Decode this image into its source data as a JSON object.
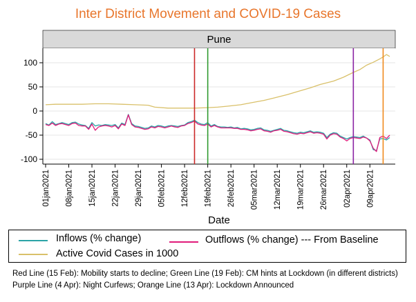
{
  "chart_data": {
    "type": "line",
    "title": "Inter District Movement and COVID-19 Cases",
    "panel_label": "Pune",
    "xlabel": "Date",
    "ylabel": "",
    "xlim": [
      "2021-01-01",
      "2021-04-15"
    ],
    "ylim": [
      -110,
      130
    ],
    "y_ticks": [
      100,
      50,
      0,
      -50,
      -100
    ],
    "x_ticks": [
      "01jan2021",
      "08jan2021",
      "15jan2021",
      "22jan2021",
      "29jan2021",
      "05feb2021",
      "12feb2021",
      "19feb2021",
      "26feb2021",
      "05mar2021",
      "12mar2021",
      "19mar2021",
      "26mar2021",
      "02apr2021",
      "09apr2021"
    ],
    "grid": true,
    "legend_position": "bottom",
    "series": [
      {
        "name": "Inflows (% change)",
        "color": "#2aa3a6",
        "points": [
          [
            "2021-01-01",
            -26
          ],
          [
            "2021-01-02",
            -29
          ],
          [
            "2021-01-03",
            -22
          ],
          [
            "2021-01-04",
            -28
          ],
          [
            "2021-01-05",
            -26
          ],
          [
            "2021-01-06",
            -24
          ],
          [
            "2021-01-07",
            -26
          ],
          [
            "2021-01-08",
            -28
          ],
          [
            "2021-01-09",
            -24
          ],
          [
            "2021-01-10",
            -23
          ],
          [
            "2021-01-11",
            -27
          ],
          [
            "2021-01-12",
            -29
          ],
          [
            "2021-01-13",
            -30
          ],
          [
            "2021-01-14",
            -36
          ],
          [
            "2021-01-15",
            -24
          ],
          [
            "2021-01-16",
            -31
          ],
          [
            "2021-01-17",
            -29
          ],
          [
            "2021-01-18",
            -30
          ],
          [
            "2021-01-19",
            -28
          ],
          [
            "2021-01-20",
            -29
          ],
          [
            "2021-01-21",
            -30
          ],
          [
            "2021-01-22",
            -28
          ],
          [
            "2021-01-23",
            -35
          ],
          [
            "2021-01-24",
            -25
          ],
          [
            "2021-01-25",
            -28
          ],
          [
            "2021-01-26",
            -7
          ],
          [
            "2021-01-27",
            -26
          ],
          [
            "2021-01-28",
            -31
          ],
          [
            "2021-01-29",
            -32
          ],
          [
            "2021-01-30",
            -34
          ],
          [
            "2021-01-31",
            -36
          ],
          [
            "2021-02-01",
            -35
          ],
          [
            "2021-02-02",
            -31
          ],
          [
            "2021-02-03",
            -33
          ],
          [
            "2021-02-04",
            -30
          ],
          [
            "2021-02-05",
            -31
          ],
          [
            "2021-02-06",
            -33
          ],
          [
            "2021-02-07",
            -31
          ],
          [
            "2021-02-08",
            -30
          ],
          [
            "2021-02-09",
            -31
          ],
          [
            "2021-02-10",
            -32
          ],
          [
            "2021-02-11",
            -30
          ],
          [
            "2021-02-12",
            -29
          ],
          [
            "2021-02-13",
            -24
          ],
          [
            "2021-02-14",
            -22
          ],
          [
            "2021-02-15",
            -19
          ],
          [
            "2021-02-16",
            -24
          ],
          [
            "2021-02-17",
            -27
          ],
          [
            "2021-02-18",
            -28
          ],
          [
            "2021-02-19",
            -24
          ],
          [
            "2021-02-20",
            -31
          ],
          [
            "2021-02-21",
            -28
          ],
          [
            "2021-02-22",
            -32
          ],
          [
            "2021-02-23",
            -33
          ],
          [
            "2021-02-24",
            -33
          ],
          [
            "2021-02-25",
            -34
          ],
          [
            "2021-02-26",
            -33
          ],
          [
            "2021-02-27",
            -35
          ],
          [
            "2021-02-28",
            -34
          ],
          [
            "2021-03-01",
            -37
          ],
          [
            "2021-03-02",
            -36
          ],
          [
            "2021-03-03",
            -37
          ],
          [
            "2021-03-04",
            -39
          ],
          [
            "2021-03-05",
            -38
          ],
          [
            "2021-03-06",
            -36
          ],
          [
            "2021-03-07",
            -35
          ],
          [
            "2021-03-08",
            -39
          ],
          [
            "2021-03-09",
            -40
          ],
          [
            "2021-03-10",
            -42
          ],
          [
            "2021-03-11",
            -40
          ],
          [
            "2021-03-12",
            -38
          ],
          [
            "2021-03-13",
            -36
          ],
          [
            "2021-03-14",
            -40
          ],
          [
            "2021-03-15",
            -41
          ],
          [
            "2021-03-16",
            -43
          ],
          [
            "2021-03-17",
            -45
          ],
          [
            "2021-03-18",
            -46
          ],
          [
            "2021-03-19",
            -44
          ],
          [
            "2021-03-20",
            -45
          ],
          [
            "2021-03-21",
            -43
          ],
          [
            "2021-03-22",
            -41
          ],
          [
            "2021-03-23",
            -44
          ],
          [
            "2021-03-24",
            -43
          ],
          [
            "2021-03-25",
            -44
          ],
          [
            "2021-03-26",
            -46
          ],
          [
            "2021-03-27",
            -55
          ],
          [
            "2021-03-28",
            -48
          ],
          [
            "2021-03-29",
            -45
          ],
          [
            "2021-03-30",
            -46
          ],
          [
            "2021-03-31",
            -52
          ],
          [
            "2021-04-01",
            -55
          ],
          [
            "2021-04-02",
            -58
          ],
          [
            "2021-04-03",
            -55
          ],
          [
            "2021-04-04",
            -53
          ],
          [
            "2021-04-05",
            -54
          ],
          [
            "2021-04-06",
            -55
          ],
          [
            "2021-04-07",
            -52
          ],
          [
            "2021-04-08",
            -56
          ],
          [
            "2021-04-09",
            -60
          ],
          [
            "2021-04-10",
            -80
          ],
          [
            "2021-04-11",
            -82
          ],
          [
            "2021-04-12",
            -58
          ],
          [
            "2021-04-13",
            -57
          ],
          [
            "2021-04-14",
            -60
          ],
          [
            "2021-04-15",
            -55
          ]
        ]
      },
      {
        "name": "Outflows  (% change)",
        "color": "#e0197a",
        "points": [
          [
            "2021-01-01",
            -28
          ],
          [
            "2021-01-02",
            -30
          ],
          [
            "2021-01-03",
            -25
          ],
          [
            "2021-01-04",
            -30
          ],
          [
            "2021-01-05",
            -27
          ],
          [
            "2021-01-06",
            -26
          ],
          [
            "2021-01-07",
            -28
          ],
          [
            "2021-01-08",
            -30
          ],
          [
            "2021-01-09",
            -26
          ],
          [
            "2021-01-10",
            -25
          ],
          [
            "2021-01-11",
            -30
          ],
          [
            "2021-01-12",
            -31
          ],
          [
            "2021-01-13",
            -31
          ],
          [
            "2021-01-14",
            -38
          ],
          [
            "2021-01-15",
            -27
          ],
          [
            "2021-01-16",
            -40
          ],
          [
            "2021-01-17",
            -33
          ],
          [
            "2021-01-18",
            -31
          ],
          [
            "2021-01-19",
            -30
          ],
          [
            "2021-01-20",
            -31
          ],
          [
            "2021-01-21",
            -33
          ],
          [
            "2021-01-22",
            -30
          ],
          [
            "2021-01-23",
            -37
          ],
          [
            "2021-01-24",
            -27
          ],
          [
            "2021-01-25",
            -30
          ],
          [
            "2021-01-26",
            -8
          ],
          [
            "2021-01-27",
            -28
          ],
          [
            "2021-01-28",
            -33
          ],
          [
            "2021-01-29",
            -34
          ],
          [
            "2021-01-30",
            -36
          ],
          [
            "2021-01-31",
            -38
          ],
          [
            "2021-02-01",
            -37
          ],
          [
            "2021-02-02",
            -33
          ],
          [
            "2021-02-03",
            -35
          ],
          [
            "2021-02-04",
            -32
          ],
          [
            "2021-02-05",
            -33
          ],
          [
            "2021-02-06",
            -35
          ],
          [
            "2021-02-07",
            -33
          ],
          [
            "2021-02-08",
            -31
          ],
          [
            "2021-02-09",
            -33
          ],
          [
            "2021-02-10",
            -34
          ],
          [
            "2021-02-11",
            -31
          ],
          [
            "2021-02-12",
            -30
          ],
          [
            "2021-02-13",
            -26
          ],
          [
            "2021-02-14",
            -24
          ],
          [
            "2021-02-15",
            -21
          ],
          [
            "2021-02-16",
            -27
          ],
          [
            "2021-02-17",
            -29
          ],
          [
            "2021-02-18",
            -30
          ],
          [
            "2021-02-19",
            -27
          ],
          [
            "2021-02-20",
            -33
          ],
          [
            "2021-02-21",
            -30
          ],
          [
            "2021-02-22",
            -33
          ],
          [
            "2021-02-23",
            -35
          ],
          [
            "2021-02-24",
            -35
          ],
          [
            "2021-02-25",
            -35
          ],
          [
            "2021-02-26",
            -35
          ],
          [
            "2021-02-27",
            -36
          ],
          [
            "2021-02-28",
            -36
          ],
          [
            "2021-03-01",
            -38
          ],
          [
            "2021-03-02",
            -38
          ],
          [
            "2021-03-03",
            -39
          ],
          [
            "2021-03-04",
            -41
          ],
          [
            "2021-03-05",
            -40
          ],
          [
            "2021-03-06",
            -38
          ],
          [
            "2021-03-07",
            -37
          ],
          [
            "2021-03-08",
            -41
          ],
          [
            "2021-03-09",
            -42
          ],
          [
            "2021-03-10",
            -44
          ],
          [
            "2021-03-11",
            -41
          ],
          [
            "2021-03-12",
            -40
          ],
          [
            "2021-03-13",
            -38
          ],
          [
            "2021-03-14",
            -42
          ],
          [
            "2021-03-15",
            -43
          ],
          [
            "2021-03-16",
            -45
          ],
          [
            "2021-03-17",
            -47
          ],
          [
            "2021-03-18",
            -48
          ],
          [
            "2021-03-19",
            -46
          ],
          [
            "2021-03-20",
            -47
          ],
          [
            "2021-03-21",
            -45
          ],
          [
            "2021-03-22",
            -43
          ],
          [
            "2021-03-23",
            -46
          ],
          [
            "2021-03-24",
            -45
          ],
          [
            "2021-03-25",
            -46
          ],
          [
            "2021-03-26",
            -48
          ],
          [
            "2021-03-27",
            -58
          ],
          [
            "2021-03-28",
            -50
          ],
          [
            "2021-03-29",
            -47
          ],
          [
            "2021-03-30",
            -48
          ],
          [
            "2021-03-31",
            -54
          ],
          [
            "2021-04-01",
            -57
          ],
          [
            "2021-04-02",
            -62
          ],
          [
            "2021-04-03",
            -57
          ],
          [
            "2021-04-04",
            -55
          ],
          [
            "2021-04-05",
            -56
          ],
          [
            "2021-04-06",
            -57
          ],
          [
            "2021-04-07",
            -54
          ],
          [
            "2021-04-08",
            -56
          ],
          [
            "2021-04-09",
            -62
          ],
          [
            "2021-04-10",
            -77
          ],
          [
            "2021-04-11",
            -84
          ],
          [
            "2021-04-12",
            -55
          ],
          [
            "2021-04-13",
            -52
          ],
          [
            "2021-04-14",
            -57
          ],
          [
            "2021-04-15",
            -50
          ]
        ]
      },
      {
        "name": "Active Covid Cases in 1000",
        "color": "#d9c069",
        "points": [
          [
            "2021-01-01",
            13
          ],
          [
            "2021-01-04",
            14
          ],
          [
            "2021-01-08",
            14
          ],
          [
            "2021-01-12",
            14
          ],
          [
            "2021-01-16",
            15
          ],
          [
            "2021-01-20",
            15
          ],
          [
            "2021-01-24",
            14
          ],
          [
            "2021-01-28",
            13
          ],
          [
            "2021-02-01",
            12
          ],
          [
            "2021-02-03",
            8
          ],
          [
            "2021-02-07",
            6
          ],
          [
            "2021-02-11",
            6
          ],
          [
            "2021-02-15",
            6
          ],
          [
            "2021-02-19",
            7
          ],
          [
            "2021-02-22",
            8
          ],
          [
            "2021-02-25",
            10
          ],
          [
            "2021-03-01",
            13
          ],
          [
            "2021-03-04",
            17
          ],
          [
            "2021-03-08",
            22
          ],
          [
            "2021-03-11",
            27
          ],
          [
            "2021-03-15",
            34
          ],
          [
            "2021-03-18",
            40
          ],
          [
            "2021-03-22",
            48
          ],
          [
            "2021-03-25",
            55
          ],
          [
            "2021-03-29",
            62
          ],
          [
            "2021-04-01",
            70
          ],
          [
            "2021-04-04",
            80
          ],
          [
            "2021-04-06",
            86
          ],
          [
            "2021-04-08",
            95
          ],
          [
            "2021-04-10",
            101
          ],
          [
            "2021-04-12",
            108
          ],
          [
            "2021-04-13",
            112
          ],
          [
            "2021-04-14",
            117
          ],
          [
            "2021-04-15",
            113
          ]
        ]
      }
    ],
    "vlines": [
      {
        "date": "2021-02-15",
        "color": "#cc2727"
      },
      {
        "date": "2021-02-19",
        "color": "#2f9a2f"
      },
      {
        "date": "2021-04-04",
        "color": "#8a22a3"
      },
      {
        "date": "2021-04-13",
        "color": "#ef8a1c"
      }
    ]
  },
  "legend": {
    "inflows_label": "Inflows (% change)",
    "outflows_label": "Outflows  (% change) ---   From Baseline",
    "active_label": "Active Covid Cases in 1000"
  },
  "notes": {
    "line1": "Red Line (15 Feb): Mobility starts to decline; Green Line (19 Feb): CM hints at Lockdown (in different districts)",
    "line2": "Purple Line (4 Apr): Night Curfews; Orange Line (13 Apr): Lockdown Announced"
  }
}
